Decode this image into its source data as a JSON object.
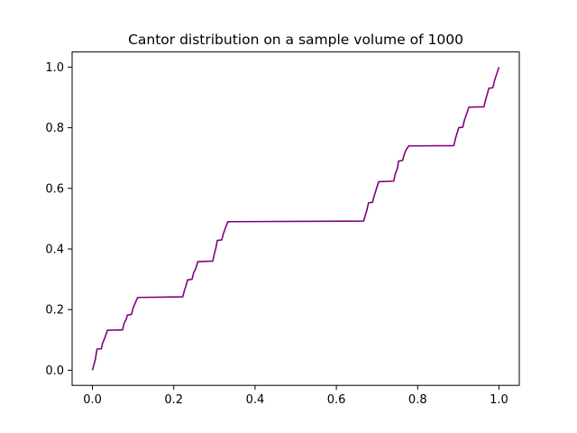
{
  "chart_data": {
    "type": "line",
    "title": "Cantor distribution on a sample volume of 1000",
    "xlabel": "",
    "ylabel": "",
    "xlim": [
      -0.05,
      1.05
    ],
    "ylim": [
      -0.05,
      1.05
    ],
    "x_ticks": [
      0.0,
      0.2,
      0.4,
      0.6,
      0.8,
      1.0
    ],
    "x_tick_labels": [
      "0.0",
      "0.2",
      "0.4",
      "0.6",
      "0.8",
      "1.0"
    ],
    "y_ticks": [
      0.0,
      0.2,
      0.4,
      0.6,
      0.8,
      1.0
    ],
    "y_tick_labels": [
      "0.0",
      "0.2",
      "0.4",
      "0.6",
      "0.8",
      "1.0"
    ],
    "grid": false,
    "legend": "none",
    "series": [
      {
        "color": "#800080",
        "x": [
          0.0,
          0.004,
          0.007,
          0.011,
          0.012,
          0.022,
          0.025,
          0.03,
          0.037,
          0.074,
          0.078,
          0.083,
          0.086,
          0.096,
          0.1,
          0.104,
          0.111,
          0.222,
          0.226,
          0.23,
          0.234,
          0.245,
          0.249,
          0.254,
          0.259,
          0.296,
          0.3,
          0.304,
          0.307,
          0.318,
          0.322,
          0.326,
          0.333,
          0.667,
          0.671,
          0.675,
          0.679,
          0.689,
          0.693,
          0.697,
          0.704,
          0.741,
          0.745,
          0.75,
          0.753,
          0.763,
          0.767,
          0.771,
          0.778,
          0.889,
          0.893,
          0.897,
          0.901,
          0.911,
          0.915,
          0.919,
          0.926,
          0.963,
          0.967,
          0.971,
          0.975,
          0.985,
          0.989,
          0.993,
          1.0
        ],
        "y": [
          0.0,
          0.02,
          0.035,
          0.068,
          0.07,
          0.071,
          0.09,
          0.105,
          0.132,
          0.133,
          0.155,
          0.168,
          0.182,
          0.184,
          0.205,
          0.218,
          0.24,
          0.242,
          0.262,
          0.278,
          0.298,
          0.3,
          0.322,
          0.335,
          0.358,
          0.36,
          0.385,
          0.405,
          0.428,
          0.43,
          0.45,
          0.465,
          0.49,
          0.492,
          0.51,
          0.528,
          0.552,
          0.554,
          0.575,
          0.592,
          0.622,
          0.624,
          0.648,
          0.665,
          0.69,
          0.692,
          0.712,
          0.726,
          0.74,
          0.741,
          0.765,
          0.782,
          0.8,
          0.802,
          0.825,
          0.84,
          0.868,
          0.869,
          0.892,
          0.91,
          0.93,
          0.932,
          0.955,
          0.972,
          1.0
        ]
      }
    ]
  }
}
